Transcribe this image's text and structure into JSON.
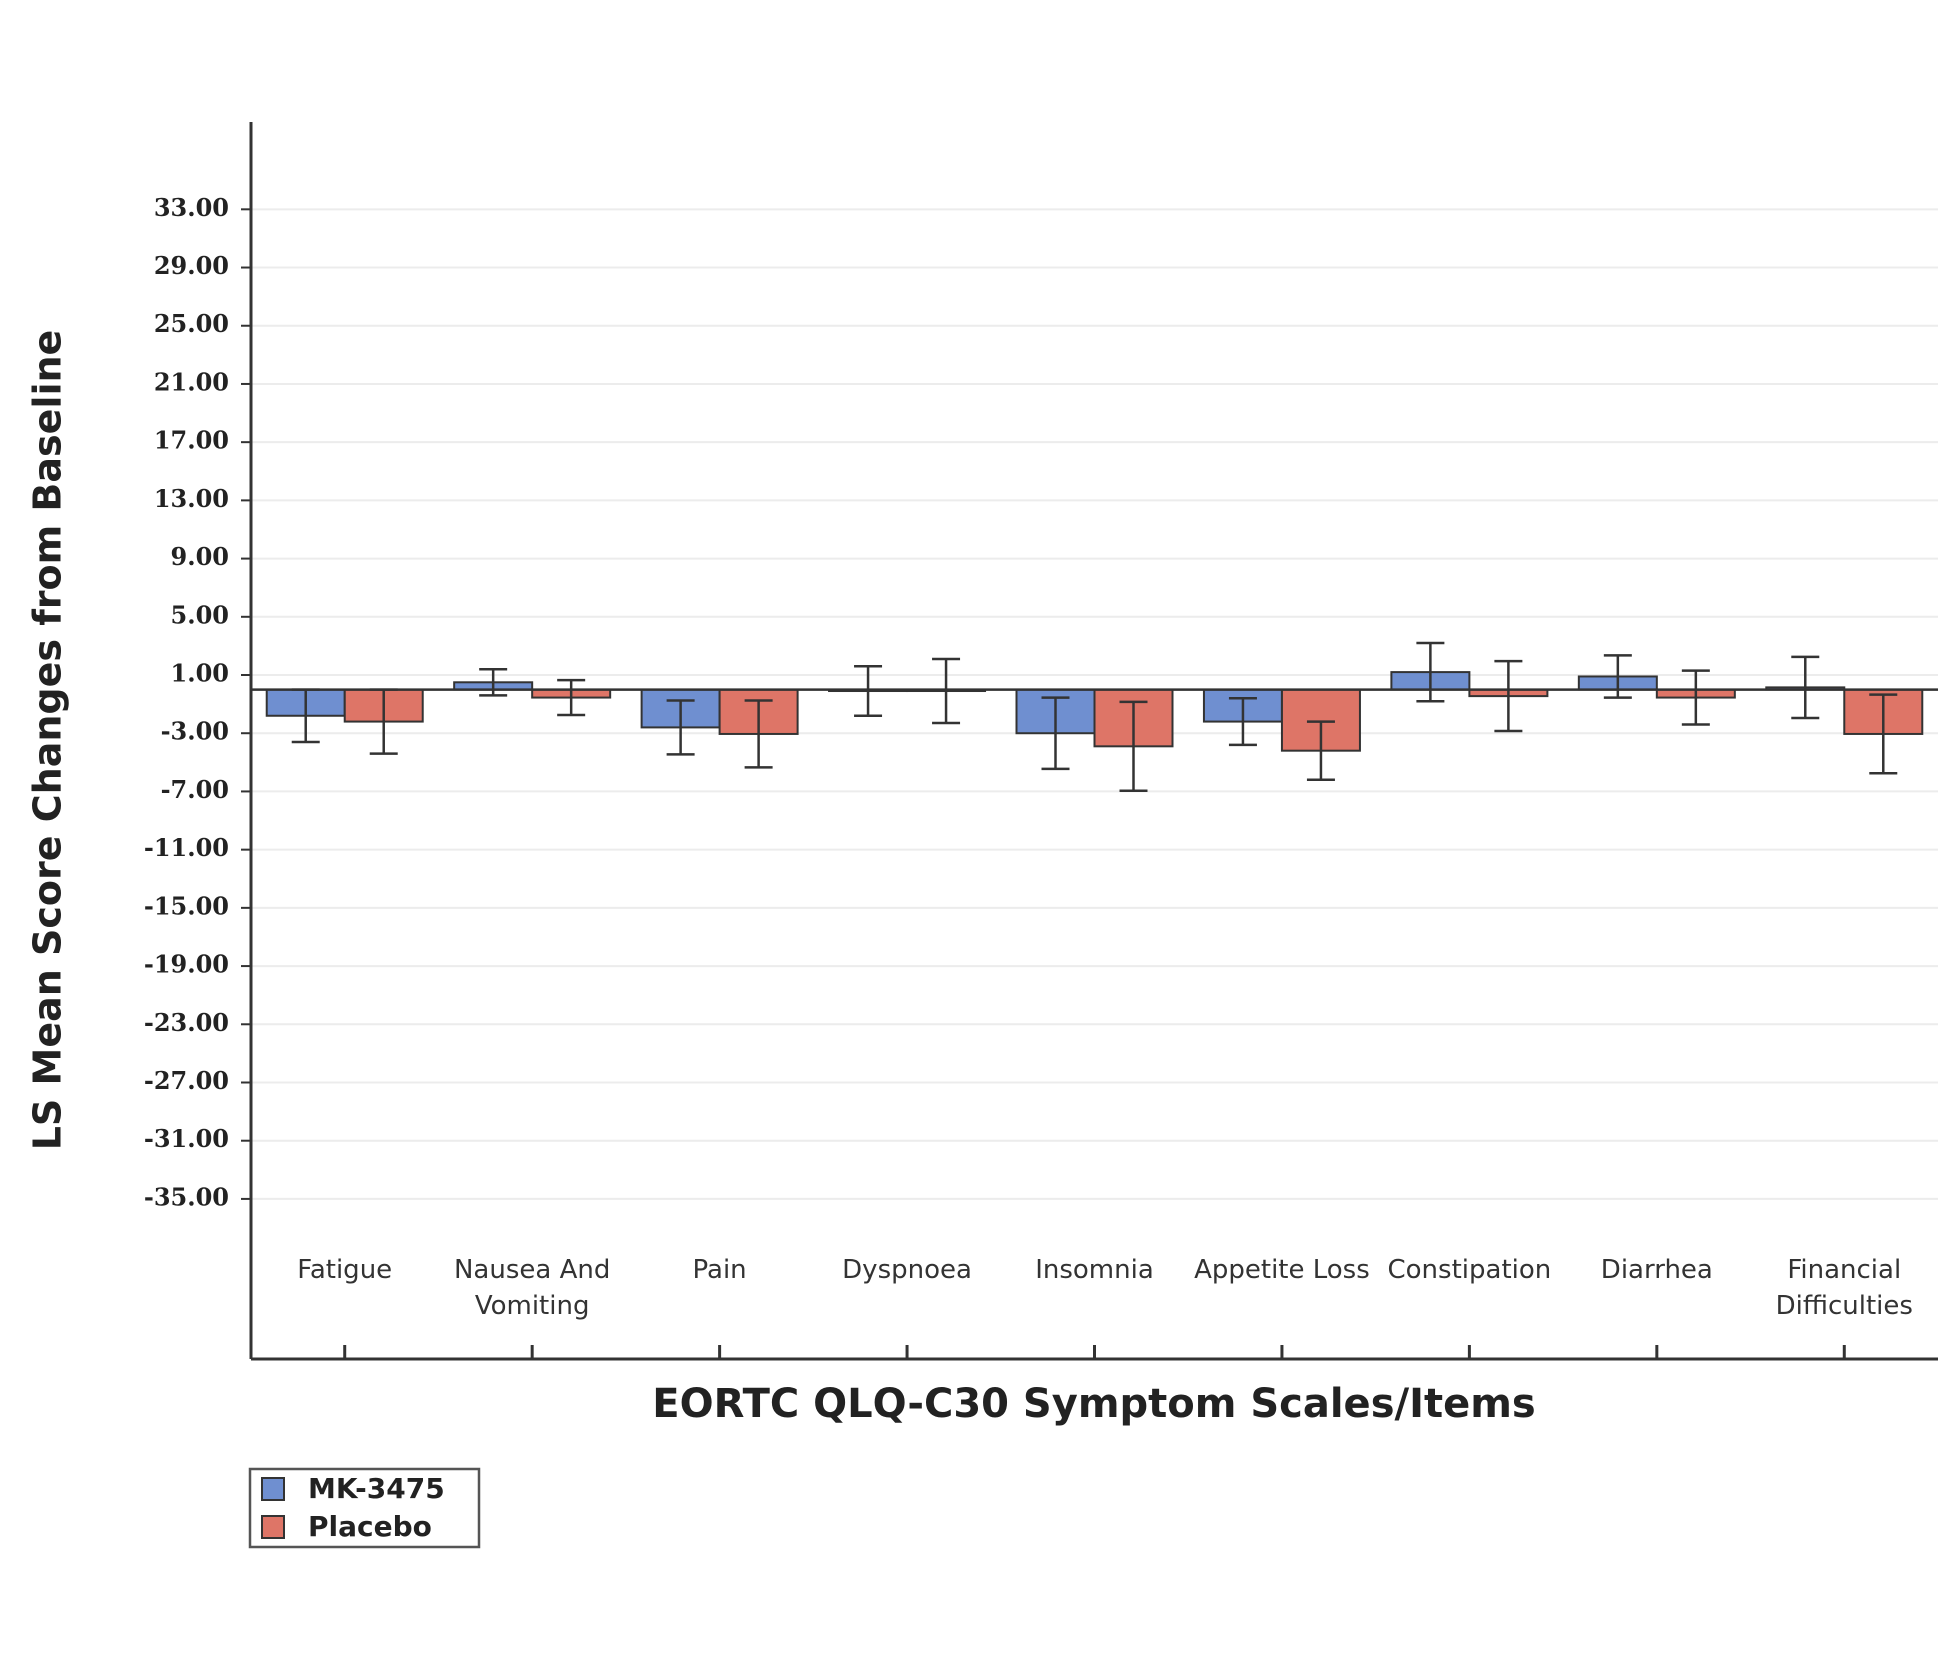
{
  "chart_data": {
    "type": "bar",
    "x_label": "EORTC QLQ-C30 Symptom Scales/Items",
    "y_label": "LS Mean Score Changes from Baseline",
    "categories": [
      "Fatigue",
      "Nausea And Vomiting",
      "Pain",
      "Dyspnoea",
      "Insomnia",
      "Appetite Loss",
      "Constipation",
      "Diarrhea",
      "Financial Difficulties"
    ],
    "series": [
      {
        "name": "MK-3475",
        "color": "#6f8fd0",
        "values": [
          -1.8,
          0.5,
          -2.6,
          -0.1,
          -3.0,
          -2.2,
          1.2,
          0.9,
          0.15
        ],
        "errors": [
          1.8,
          0.9,
          1.85,
          1.7,
          2.45,
          1.6,
          2.0,
          1.45,
          2.1
        ]
      },
      {
        "name": "Placebo",
        "color": "#de7567",
        "values": [
          -2.2,
          -0.55,
          -3.05,
          -0.1,
          -3.9,
          -4.2,
          -0.45,
          -0.55,
          -3.05
        ],
        "errors": [
          2.2,
          1.2,
          2.3,
          2.2,
          3.05,
          2.0,
          2.4,
          1.85,
          2.7
        ]
      }
    ],
    "ylim": [
      -46,
      39
    ],
    "yticks": [
      {
        "value": 33,
        "label": "33.00"
      },
      {
        "value": 29,
        "label": "29.00"
      },
      {
        "value": 25,
        "label": "25.00"
      },
      {
        "value": 21,
        "label": "21.00"
      },
      {
        "value": 17,
        "label": "17.00"
      },
      {
        "value": 13,
        "label": "13.00"
      },
      {
        "value": 9,
        "label": "9.00"
      },
      {
        "value": 5,
        "label": "5.00"
      },
      {
        "value": 1,
        "label": "1.00"
      },
      {
        "value": -3,
        "label": "-3.00"
      },
      {
        "value": -7,
        "label": "-7.00"
      },
      {
        "value": -11,
        "label": "-11.00"
      },
      {
        "value": -15,
        "label": "-15.00"
      },
      {
        "value": -19,
        "label": "-19.00"
      },
      {
        "value": -23,
        "label": "-23.00"
      },
      {
        "value": -27,
        "label": "-27.00"
      },
      {
        "value": -31,
        "label": "-31.00"
      },
      {
        "value": -35,
        "label": "-35.00"
      }
    ],
    "grid": true,
    "legend": "bottom-left"
  }
}
